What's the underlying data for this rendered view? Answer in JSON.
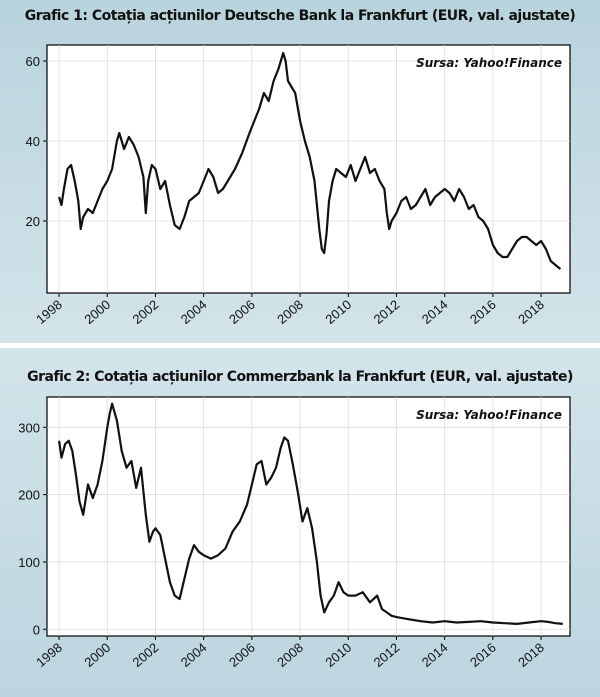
{
  "chart_data": [
    {
      "type": "line",
      "title": "Grafic 1: Cotația acțiunilor Deutsche Bank la Frankfurt (EUR, val. ajustate)",
      "source": "Sursa: Yahoo!Finance",
      "xlim": [
        1997.5,
        2019.2
      ],
      "ylim": [
        2,
        64
      ],
      "yticks": [
        20,
        40,
        60
      ],
      "xticks": [
        1998,
        2000,
        2002,
        2004,
        2006,
        2008,
        2010,
        2012,
        2014,
        2016,
        2018
      ],
      "grid": true,
      "series": [
        {
          "color": "#111111",
          "x": [
            1998.0,
            1998.1,
            1998.2,
            1998.35,
            1998.5,
            1998.65,
            1998.8,
            1998.9,
            1999.0,
            1999.2,
            1999.4,
            1999.6,
            1999.8,
            2000.0,
            2000.2,
            2000.4,
            2000.5,
            2000.7,
            2000.9,
            2001.1,
            2001.3,
            2001.5,
            2001.6,
            2001.7,
            2001.85,
            2002.0,
            2002.2,
            2002.4,
            2002.6,
            2002.8,
            2003.0,
            2003.2,
            2003.4,
            2003.6,
            2003.8,
            2004.0,
            2004.2,
            2004.4,
            2004.6,
            2004.8,
            2005.0,
            2005.3,
            2005.6,
            2005.9,
            2006.1,
            2006.3,
            2006.5,
            2006.7,
            2006.9,
            2007.1,
            2007.3,
            2007.4,
            2007.5,
            2007.6,
            2007.8,
            2008.0,
            2008.2,
            2008.4,
            2008.5,
            2008.6,
            2008.7,
            2008.8,
            2008.9,
            2009.0,
            2009.1,
            2009.2,
            2009.35,
            2009.5,
            2009.7,
            2009.9,
            2010.1,
            2010.3,
            2010.5,
            2010.7,
            2010.9,
            2011.1,
            2011.3,
            2011.5,
            2011.6,
            2011.7,
            2011.8,
            2012.0,
            2012.2,
            2012.4,
            2012.6,
            2012.8,
            2013.0,
            2013.2,
            2013.4,
            2013.6,
            2013.8,
            2014.0,
            2014.2,
            2014.4,
            2014.6,
            2014.8,
            2015.0,
            2015.2,
            2015.4,
            2015.6,
            2015.8,
            2016.0,
            2016.2,
            2016.4,
            2016.6,
            2016.8,
            2017.0,
            2017.2,
            2017.4,
            2017.6,
            2017.8,
            2018.0,
            2018.2,
            2018.4,
            2018.6,
            2018.8
          ],
          "y": [
            26,
            24,
            28,
            33,
            34,
            30,
            25,
            18,
            21,
            23,
            22,
            25,
            28,
            30,
            33,
            40,
            42,
            38,
            41,
            39,
            36,
            31,
            22,
            30,
            34,
            33,
            28,
            30,
            24,
            19,
            18,
            21,
            25,
            26,
            27,
            30,
            33,
            31,
            27,
            28,
            30,
            33,
            37,
            42,
            45,
            48,
            52,
            50,
            55,
            58,
            62,
            60,
            55,
            54,
            52,
            45,
            40,
            36,
            33,
            30,
            24,
            18,
            13,
            12,
            17,
            25,
            30,
            33,
            32,
            31,
            34,
            30,
            33,
            36,
            32,
            33,
            30,
            28,
            22,
            18,
            20,
            22,
            25,
            26,
            23,
            24,
            26,
            28,
            24,
            26,
            27,
            28,
            27,
            25,
            28,
            26,
            23,
            24,
            21,
            20,
            18,
            14,
            12,
            11,
            11,
            13,
            15,
            16,
            16,
            15,
            14,
            15,
            13,
            10,
            9,
            8
          ]
        }
      ]
    },
    {
      "type": "line",
      "title": "Grafic 2: Cotația acțiunilor Commerzbank la Frankfurt (EUR, val. ajustate)",
      "source": "Sursa: Yahoo!Finance",
      "xlim": [
        1997.5,
        2019.2
      ],
      "ylim": [
        -10,
        345
      ],
      "yticks": [
        0,
        100,
        200,
        300
      ],
      "xticks": [
        1998,
        2000,
        2002,
        2004,
        2006,
        2008,
        2010,
        2012,
        2014,
        2016,
        2018
      ],
      "grid": true,
      "series": [
        {
          "color": "#111111",
          "x": [
            1998.0,
            1998.1,
            1998.25,
            1998.4,
            1998.55,
            1998.7,
            1998.85,
            1999.0,
            1999.2,
            1999.4,
            1999.6,
            1999.8,
            2000.0,
            2000.1,
            2000.2,
            2000.4,
            2000.6,
            2000.8,
            2001.0,
            2001.2,
            2001.4,
            2001.6,
            2001.75,
            2001.9,
            2002.0,
            2002.2,
            2002.4,
            2002.6,
            2002.8,
            2003.0,
            2003.2,
            2003.4,
            2003.6,
            2003.8,
            2004.0,
            2004.3,
            2004.6,
            2004.9,
            2005.2,
            2005.5,
            2005.8,
            2006.0,
            2006.2,
            2006.4,
            2006.6,
            2006.8,
            2007.0,
            2007.2,
            2007.35,
            2007.5,
            2007.7,
            2007.9,
            2008.1,
            2008.3,
            2008.5,
            2008.7,
            2008.85,
            2009.0,
            2009.2,
            2009.4,
            2009.6,
            2009.8,
            2010.0,
            2010.3,
            2010.6,
            2010.9,
            2011.2,
            2011.4,
            2011.6,
            2011.8,
            2012.0,
            2012.5,
            2013.0,
            2013.5,
            2014.0,
            2014.5,
            2015.0,
            2015.5,
            2016.0,
            2016.5,
            2017.0,
            2017.5,
            2018.0,
            2018.3,
            2018.6,
            2018.9
          ],
          "y": [
            280,
            255,
            275,
            280,
            265,
            230,
            190,
            170,
            215,
            195,
            215,
            250,
            300,
            320,
            335,
            310,
            265,
            240,
            250,
            210,
            240,
            170,
            130,
            145,
            150,
            140,
            105,
            70,
            50,
            45,
            75,
            105,
            125,
            115,
            110,
            105,
            110,
            120,
            145,
            160,
            185,
            215,
            245,
            250,
            215,
            225,
            240,
            270,
            285,
            280,
            245,
            205,
            160,
            180,
            150,
            100,
            50,
            25,
            40,
            50,
            70,
            55,
            50,
            50,
            55,
            40,
            50,
            30,
            25,
            20,
            18,
            15,
            12,
            10,
            12,
            10,
            11,
            12,
            10,
            9,
            8,
            10,
            12,
            11,
            9,
            8
          ]
        }
      ]
    }
  ]
}
